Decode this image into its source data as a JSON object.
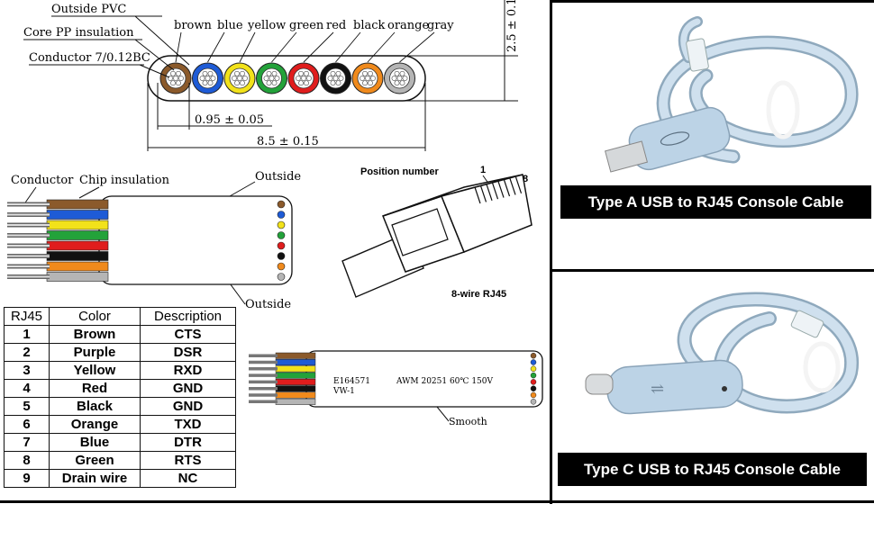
{
  "cross_section": {
    "outside_pvc": "Outside PVC",
    "core_pp": "Core PP insulation",
    "conductor": "Conductor 7/0.12BC",
    "wire_colors": [
      "brown",
      "blue",
      "yellow",
      "green",
      "red",
      "black",
      "orange",
      "gray"
    ],
    "pitch_dim": "0.95 ± 0.05",
    "width_dim": "8.5 ± 0.15",
    "height_dim": "2.5 ± 0.1"
  },
  "flat_cable": {
    "conductor": "Conductor",
    "chip_insulation": "Chip insulation",
    "outside_top": "Outside",
    "outside_bottom": "Outside"
  },
  "rj45": {
    "position_number": "Position number",
    "pin_first": "1",
    "pin_last": "8",
    "caption": "8-wire RJ45"
  },
  "marked_cable": {
    "print_1": "E164571",
    "print_2": "AWM 20251 60℃ 150V",
    "print_3": "VW-1",
    "smooth": "Smooth"
  },
  "pinout_table": {
    "headers": [
      "RJ45",
      "Color",
      "Description"
    ],
    "rows": [
      [
        "1",
        "Brown",
        "CTS"
      ],
      [
        "2",
        "Purple",
        "DSR"
      ],
      [
        "3",
        "Yellow",
        "RXD"
      ],
      [
        "4",
        "Red",
        "GND"
      ],
      [
        "5",
        "Black",
        "GND"
      ],
      [
        "6",
        "Orange",
        "TXD"
      ],
      [
        "7",
        "Blue",
        "DTR"
      ],
      [
        "8",
        "Green",
        "RTS"
      ],
      [
        "9",
        "Drain wire",
        "NC"
      ]
    ]
  },
  "products": {
    "type_a": "Type A USB to RJ45 Console Cable",
    "type_c": "Type C USB to RJ45 Console Cable"
  },
  "colors": {
    "brown": "#8b5a2b",
    "blue": "#1e5bd6",
    "yellow": "#f2e21a",
    "green": "#23a23a",
    "red": "#e01d1d",
    "black": "#111111",
    "orange": "#f08a1c",
    "gray": "#b5b5b5",
    "cable": "#bcd3e6"
  }
}
